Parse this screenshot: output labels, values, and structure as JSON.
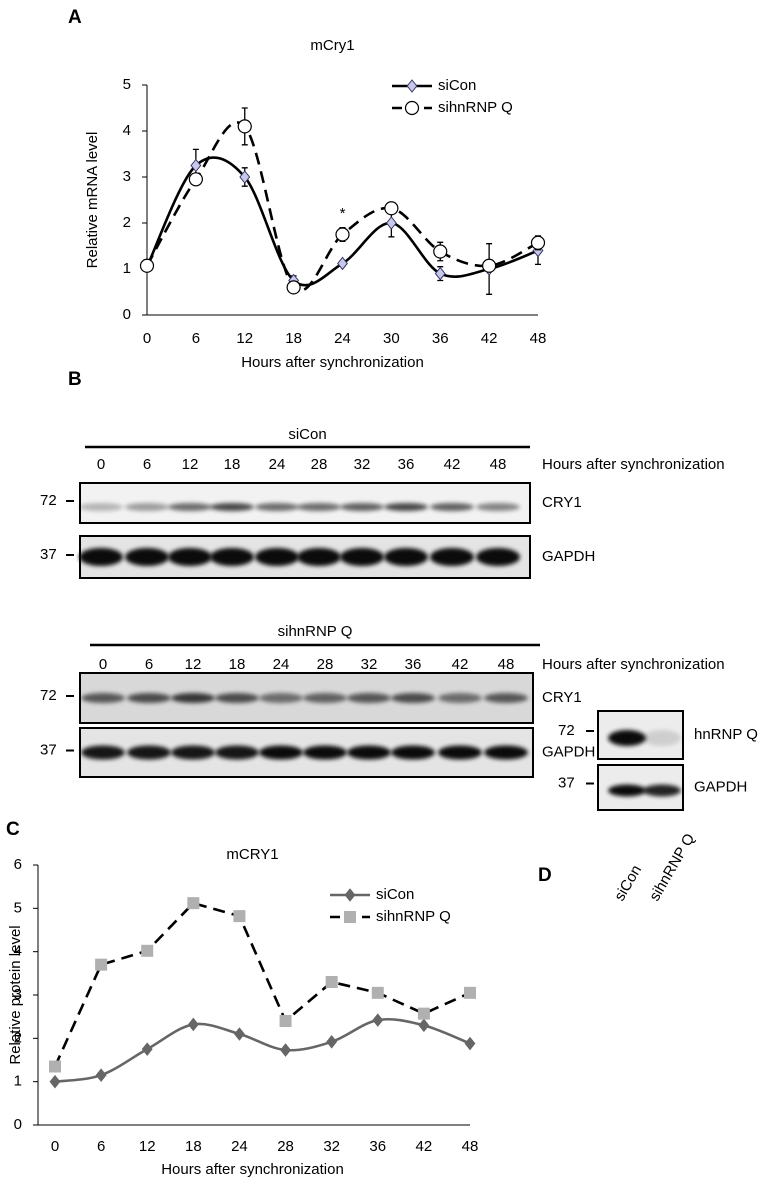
{
  "panel_labels": [
    "A",
    "B",
    "C",
    "D"
  ],
  "chart_data": [
    {
      "type": "line",
      "title": "mCry1",
      "xlabel": "Hours after synchronization",
      "ylabel": "Relative mRNA level",
      "x": [
        0,
        6,
        12,
        18,
        24,
        30,
        36,
        42,
        48
      ],
      "xlim": [
        0,
        48
      ],
      "xticks": [
        0,
        6,
        12,
        18,
        24,
        30,
        36,
        42,
        48
      ],
      "ylim": [
        0,
        5
      ],
      "yticks": [
        0,
        1,
        2,
        3,
        4,
        5
      ],
      "legend": "top-right",
      "series": [
        {
          "name": "siCon",
          "color": "#000000",
          "marker": "diamond",
          "dash": false,
          "smooth": true,
          "values": [
            1.05,
            3.25,
            3.0,
            0.75,
            1.12,
            2.0,
            0.9,
            1.0,
            1.4
          ],
          "errors": [
            0.05,
            0.35,
            0.2,
            0.1,
            0.05,
            0.3,
            0.15,
            0.55,
            0.3
          ]
        },
        {
          "name": "sihnRNP Q",
          "color": "#000000",
          "marker": "circle",
          "dash": true,
          "smooth": true,
          "values": [
            1.07,
            2.95,
            4.1,
            0.6,
            1.75,
            2.32,
            1.38,
            1.07,
            1.57
          ],
          "errors": [
            0.05,
            0.1,
            0.4,
            0.05,
            0.15,
            0.1,
            0.2,
            0.1,
            0.15
          ]
        }
      ],
      "annotations": [
        {
          "text": "*",
          "x": 24,
          "y": 2.2
        }
      ]
    },
    {
      "type": "line",
      "title": "mCRY1",
      "xlabel": "Hours after synchronization",
      "ylabel": "Relative protein level",
      "categories": [
        "0",
        "6",
        "12",
        "18",
        "24",
        "28",
        "32",
        "36",
        "42",
        "48"
      ],
      "ylim": [
        0,
        6
      ],
      "yticks": [
        0,
        1,
        2,
        3,
        4,
        5,
        6
      ],
      "legend": "right",
      "series": [
        {
          "name": "siCon",
          "color": "#666666",
          "marker": "diamond",
          "dash": false,
          "smooth": true,
          "values": [
            1.0,
            1.15,
            1.75,
            2.32,
            2.1,
            1.73,
            1.92,
            2.42,
            2.3,
            1.88
          ]
        },
        {
          "name": "sihnRNP Q",
          "color": "#b0b0b0",
          "marker": "square",
          "dash": true,
          "smooth": false,
          "values": [
            1.35,
            3.7,
            4.02,
            5.12,
            4.82,
            2.4,
            3.3,
            3.05,
            2.57,
            3.05
          ]
        }
      ]
    }
  ],
  "blots": {
    "B": [
      {
        "group": "siCon",
        "lanes": [
          "0",
          "6",
          "12",
          "18",
          "24",
          "28",
          "32",
          "36",
          "42",
          "48"
        ],
        "lanes_caption": "Hours after synchronization",
        "rows": [
          {
            "marker": "72",
            "label": "CRY1"
          },
          {
            "marker": "37",
            "label": "GAPDH"
          }
        ]
      },
      {
        "group": "sihnRNP Q",
        "lanes": [
          "0",
          "6",
          "12",
          "18",
          "24",
          "28",
          "32",
          "36",
          "42",
          "48"
        ],
        "lanes_caption": "Hours after synchronization",
        "rows": [
          {
            "marker": "72",
            "label": "CRY1"
          },
          {
            "marker": "37",
            "label": "GAPDH"
          }
        ]
      }
    ],
    "D": {
      "lanes": [
        "siCon",
        "sihnRNP Q"
      ],
      "rows": [
        {
          "marker": "72",
          "label": "hnRNP Q"
        },
        {
          "marker": "37",
          "label": "GAPDH"
        }
      ]
    }
  }
}
